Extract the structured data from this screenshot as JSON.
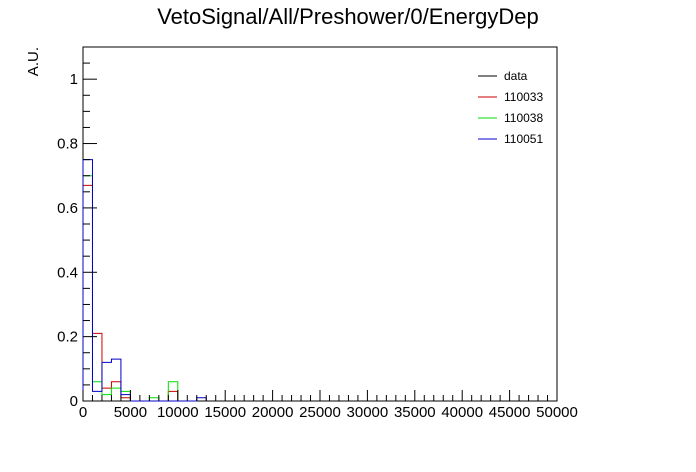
{
  "chart_data": {
    "type": "histogram",
    "title": "VetoSignal/All/Preshower/0/EnergyDep",
    "xlabel": "",
    "ylabel": "A.U.",
    "xlim": [
      0,
      50000
    ],
    "ylim": [
      0,
      1.1
    ],
    "bin_width": 1000,
    "xticks": [
      0,
      5000,
      10000,
      15000,
      20000,
      25000,
      30000,
      35000,
      40000,
      45000,
      50000
    ],
    "xtick_labels": [
      "0",
      "5000",
      "10000",
      "15000",
      "20000",
      "25000",
      "30000",
      "35000",
      "40000",
      "45000",
      "50000"
    ],
    "yticks": [
      0,
      0.2,
      0.4,
      0.6,
      0.8,
      1
    ],
    "ytick_labels": [
      "0",
      "0.2",
      "0.4",
      "0.6",
      "0.8",
      "1"
    ],
    "grid": false,
    "legend_position": "top-right",
    "series": [
      {
        "name": "data",
        "color": "#000000",
        "values": [
          0,
          0,
          0
        ]
      },
      {
        "name": "110033",
        "color": "#cc0000",
        "values": [
          0.67,
          0.21,
          0.04,
          0.06,
          0.01,
          0,
          0,
          0,
          0,
          0.03
        ]
      },
      {
        "name": "110038",
        "color": "#00dd00",
        "values": [
          0.7,
          0.06,
          0.02,
          0.04,
          0.03,
          0,
          0,
          0.01,
          0,
          0.06
        ]
      },
      {
        "name": "110051",
        "color": "#0000cc",
        "values": [
          0.75,
          0.03,
          0.12,
          0.13,
          0.02,
          0,
          0,
          0,
          0,
          0,
          0,
          0,
          0.01
        ]
      }
    ]
  }
}
